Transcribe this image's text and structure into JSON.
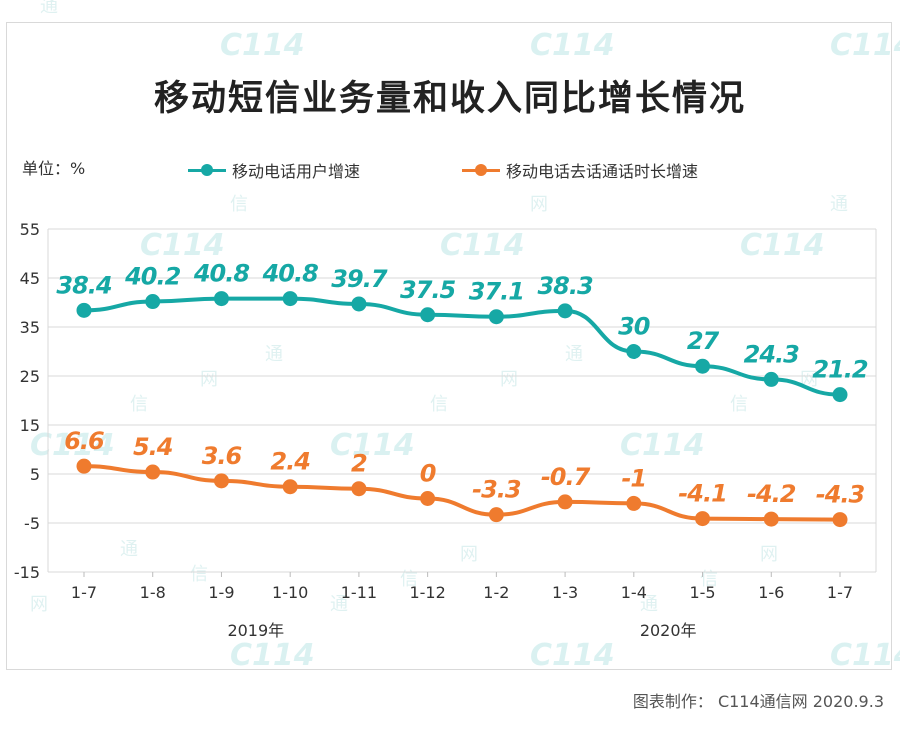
{
  "title": "移动短信业务量和收入同比增长情况",
  "unit_label": "单位：%",
  "source": "图表制作： C114通信网  2020.9.3",
  "watermark": {
    "logo": "C114",
    "chars": [
      "通",
      "信",
      "网"
    ]
  },
  "colors": {
    "teal": "#16a8a5",
    "orange": "#ef7b2e",
    "grid": "#d9d9d9"
  },
  "chart_data": {
    "type": "line",
    "categories": [
      "1-7",
      "1-8",
      "1-9",
      "1-10",
      "1-11",
      "1-12",
      "1-2",
      "1-3",
      "1-4",
      "1-5",
      "1-6",
      "1-7"
    ],
    "year_groups": [
      {
        "label": "2019年",
        "from": 0,
        "to": 5
      },
      {
        "label": "2020年",
        "from": 6,
        "to": 11
      }
    ],
    "yticks": [
      55,
      45,
      35,
      25,
      15,
      5,
      -5,
      -15
    ],
    "ylim": [
      -15,
      55
    ],
    "series": [
      {
        "name": "移动电话用户增速",
        "color": "#16a8a5",
        "values": [
          38.4,
          40.2,
          40.8,
          40.8,
          39.7,
          37.5,
          37.1,
          38.3,
          30,
          27,
          24.3,
          21.2
        ],
        "labels": [
          "38.4",
          "40.2",
          "40.8",
          "40.8",
          "39.7",
          "37.5",
          "37.1",
          "38.3",
          "30",
          "27",
          "24.3",
          "21.2"
        ]
      },
      {
        "name": "移动电话去话通话时长增速",
        "color": "#ef7b2e",
        "values": [
          6.6,
          5.4,
          3.6,
          2.4,
          2,
          0,
          -3.3,
          -0.7,
          -1,
          -4.1,
          -4.2,
          -4.3
        ],
        "labels": [
          "6.6",
          "5.4",
          "3.6",
          "2.4",
          "2",
          "0",
          "-3.3",
          "-0.7",
          "-1",
          "-4.1",
          "-4.2",
          "-4.3"
        ]
      }
    ]
  }
}
